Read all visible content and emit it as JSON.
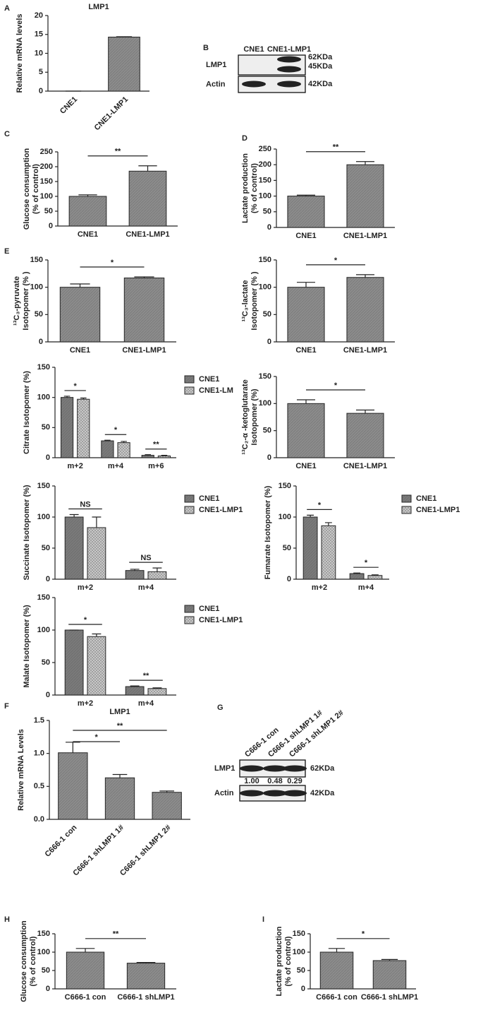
{
  "chart_data": [
    {
      "type": "bar",
      "panel": "A",
      "title": "LMP1",
      "ylabel": [
        "Relative mRNA levels"
      ],
      "categories": [
        "CNE1",
        "CNE1-LMP1"
      ],
      "values": [
        0,
        14.3
      ],
      "errors": [
        0,
        0.1
      ],
      "color": "#8c8c8c",
      "pattern": "hatch",
      "ylim": [
        0,
        20
      ],
      "yticks": [
        0,
        5,
        10,
        15,
        20
      ],
      "annotations": []
    },
    {
      "type": "bar",
      "panel": "C",
      "ylabel": [
        "Glucose consumption",
        "(% of control)"
      ],
      "categories": [
        "CNE1",
        "CNE1-LMP1"
      ],
      "values": [
        100,
        185
      ],
      "errors": [
        5,
        18
      ],
      "color": "#8c8c8c",
      "pattern": "hatch",
      "ylim": [
        0,
        250
      ],
      "yticks": [
        0,
        50,
        100,
        150,
        200,
        250
      ],
      "annotations": [
        "**"
      ]
    },
    {
      "type": "bar",
      "panel": "D",
      "ylabel": [
        "Lactate production",
        "(% of control)"
      ],
      "categories": [
        "CNE1",
        "CNE1-LMP1"
      ],
      "values": [
        100,
        200
      ],
      "errors": [
        3,
        10
      ],
      "color": "#8c8c8c",
      "pattern": "hatch",
      "ylim": [
        0,
        250
      ],
      "yticks": [
        0,
        50,
        100,
        150,
        200,
        250
      ],
      "annotations": [
        "**"
      ]
    },
    {
      "type": "bar",
      "panel": "E",
      "ylabel": [
        "¹³C₃-pyruvate",
        "Isotopomer (% )"
      ],
      "categories": [
        "CNE1",
        "CNE1-LMP1"
      ],
      "values": [
        100,
        117
      ],
      "errors": [
        6,
        2
      ],
      "color": "#8c8c8c",
      "pattern": "hatch",
      "ylim": [
        0,
        150
      ],
      "yticks": [
        0,
        50,
        100,
        150
      ],
      "annotations": [
        "*"
      ]
    },
    {
      "type": "bar",
      "ylabel": [
        "¹³C₃-lactate",
        "Isotopomer (% )"
      ],
      "categories": [
        "CNE1",
        "CNE1-LMP1"
      ],
      "values": [
        100,
        118
      ],
      "errors": [
        9,
        5
      ],
      "color": "#8c8c8c",
      "pattern": "hatch",
      "ylim": [
        0,
        150
      ],
      "yticks": [
        0,
        50,
        100,
        150
      ],
      "annotations": [
        "*"
      ]
    },
    {
      "type": "bar",
      "ylabel": [
        "Citrate Isotopomer (%)"
      ],
      "categories": [
        "m+2",
        "m+4",
        "m+6"
      ],
      "series": [
        {
          "name": "CNE1",
          "color": "#7a7a7a",
          "pattern": "hatch",
          "values": [
            100,
            28,
            4
          ],
          "errors": [
            2,
            1,
            1
          ]
        },
        {
          "name": "CNE1-LM",
          "color": "#c8c8c8",
          "pattern": "checker",
          "values": [
            97,
            25,
            3
          ],
          "errors": [
            2,
            2,
            1
          ]
        }
      ],
      "ylim": [
        0,
        150
      ],
      "yticks": [
        0,
        50,
        100,
        150
      ],
      "annotations": [
        "*",
        "*",
        "**"
      ]
    },
    {
      "type": "bar",
      "ylabel": [
        "¹³C₂-α -ketoglutarate",
        "Isotopomer (%)"
      ],
      "categories": [
        "CNE1",
        "CNE1-LMP1"
      ],
      "values": [
        100,
        82
      ],
      "errors": [
        7,
        6
      ],
      "color": "#8c8c8c",
      "pattern": "hatch",
      "ylim": [
        0,
        150
      ],
      "yticks": [
        0,
        50,
        100,
        150
      ],
      "annotations": [
        "*"
      ]
    },
    {
      "type": "bar",
      "ylabel": [
        "Succinate Isotopomer (%)"
      ],
      "categories": [
        "m+2",
        "m+4"
      ],
      "series": [
        {
          "name": "CNE1",
          "color": "#7a7a7a",
          "pattern": "hatch",
          "values": [
            100,
            14
          ],
          "errors": [
            4,
            2
          ]
        },
        {
          "name": "CNE1-LMP1",
          "color": "#c8c8c8",
          "pattern": "checker",
          "values": [
            83,
            12
          ],
          "errors": [
            17,
            6
          ]
        }
      ],
      "ylim": [
        0,
        150
      ],
      "yticks": [
        0,
        50,
        100,
        150
      ],
      "annotations": [
        "NS",
        "NS"
      ]
    },
    {
      "type": "bar",
      "ylabel": [
        "Fumarate Isotopomer (%)"
      ],
      "categories": [
        "m+2",
        "m+4"
      ],
      "series": [
        {
          "name": "CNE1",
          "color": "#7a7a7a",
          "pattern": "hatch",
          "values": [
            100,
            9
          ],
          "errors": [
            3,
            1
          ]
        },
        {
          "name": "CNE1-LMP1",
          "color": "#c8c8c8",
          "pattern": "checker",
          "values": [
            86,
            6
          ],
          "errors": [
            5,
            1
          ]
        }
      ],
      "ylim": [
        0,
        150
      ],
      "yticks": [
        0,
        50,
        100,
        150
      ],
      "annotations": [
        "*",
        "*"
      ]
    },
    {
      "type": "bar",
      "ylabel": [
        "Malate Isotopomer (%)"
      ],
      "categories": [
        "m+2",
        "m+4"
      ],
      "series": [
        {
          "name": "CNE1",
          "color": "#7a7a7a",
          "pattern": "hatch",
          "values": [
            100,
            13
          ],
          "errors": [
            0,
            1
          ]
        },
        {
          "name": "CNE1-LMP1",
          "color": "#c8c8c8",
          "pattern": "checker",
          "values": [
            90,
            10
          ],
          "errors": [
            4,
            1
          ]
        }
      ],
      "ylim": [
        0,
        150
      ],
      "yticks": [
        0,
        50,
        100,
        150
      ],
      "annotations": [
        "*",
        "**"
      ]
    },
    {
      "type": "bar",
      "panel": "F",
      "title": "LMP1",
      "ylabel": [
        "Relative mRNA Levels"
      ],
      "categories": [
        "C666-1 con",
        "C666-1 shLMP1 1#",
        "C666-1 shLMP1 2#"
      ],
      "values": [
        1.01,
        0.63,
        0.41
      ],
      "errors": [
        0.16,
        0.05,
        0.02
      ],
      "color": "#8c8c8c",
      "pattern": "hatch",
      "ylim": [
        0,
        1.5
      ],
      "yticks": [
        {
          "value": 0,
          "label": "0.0"
        },
        {
          "value": 0.5,
          "label": "0.5"
        },
        {
          "value": 1,
          "label": "1.0"
        },
        {
          "value": 1.5,
          "label": "1.5"
        }
      ],
      "annotations": [
        "*",
        "**"
      ]
    },
    {
      "type": "bar",
      "panel": "H",
      "ylabel": [
        "Glucose consumption",
        "(% of control)"
      ],
      "categories": [
        "C666-1 con",
        "C666-1 shLMP1"
      ],
      "values": [
        100,
        70
      ],
      "errors": [
        10,
        2
      ],
      "color": "#8c8c8c",
      "pattern": "hatch",
      "ylim": [
        0,
        150
      ],
      "yticks": [
        0,
        50,
        100,
        150
      ],
      "annotations": [
        "**"
      ]
    },
    {
      "type": "bar",
      "panel": "I",
      "ylabel": [
        "Lactate production",
        "(% of control)"
      ],
      "categories": [
        "C666-1 con",
        "C666-1 shLMP1"
      ],
      "values": [
        100,
        77
      ],
      "errors": [
        10,
        3
      ],
      "color": "#8c8c8c",
      "pattern": "hatch",
      "ylim": [
        0,
        150
      ],
      "yticks": [
        0,
        50,
        100,
        150
      ],
      "annotations": [
        "*"
      ]
    }
  ],
  "blots": [
    {
      "panel": "B",
      "lanes": [
        "CNE1",
        "CNE1-LMP1"
      ],
      "rows": [
        {
          "label": "LMP1",
          "sizes": [
            "62KDa",
            "45KDa"
          ]
        },
        {
          "label": "Actin",
          "sizes": [
            "42KDa"
          ]
        }
      ]
    },
    {
      "panel": "G",
      "lanes": [
        "C666-1 con",
        "C666-1 shLMP1  1#",
        "C666-1 shLMP1 2#"
      ],
      "rows": [
        {
          "label": "LMP1",
          "sizes": [
            "62KDa"
          ]
        },
        {
          "label": "Actin",
          "sizes": [
            "42KDa"
          ]
        }
      ],
      "quantification": [
        "1.00",
        "0.48",
        "0.29"
      ]
    }
  ]
}
